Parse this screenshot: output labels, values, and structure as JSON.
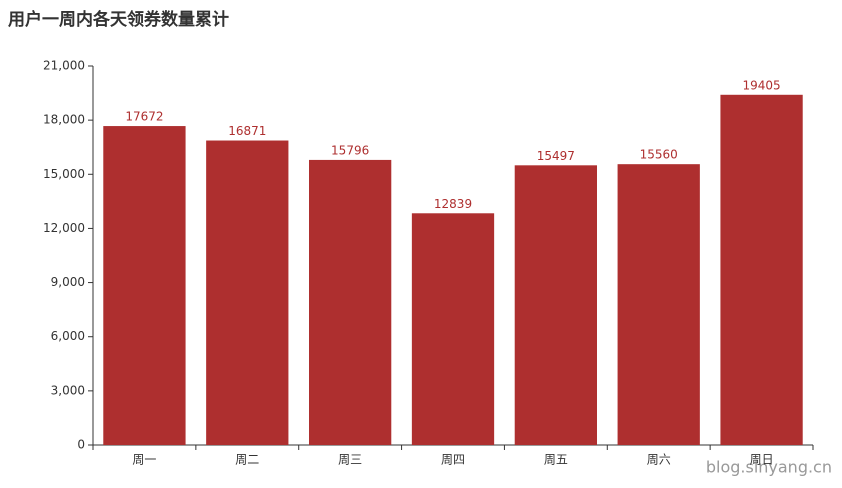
{
  "chart_data": {
    "type": "bar",
    "title": "用户一周内各天领券数量累计",
    "categories": [
      "周一",
      "周二",
      "周三",
      "周四",
      "周五",
      "周六",
      "周日"
    ],
    "values": [
      17672,
      16871,
      15796,
      12839,
      15497,
      15560,
      19405
    ],
    "color": "#ae2f2f",
    "ylim": [
      0,
      21000
    ],
    "yticks": [
      0,
      {
        "value": 3000,
        "label": "3,000"
      },
      {
        "value": 6000,
        "label": "6,000"
      },
      {
        "value": 9000,
        "label": "9,000"
      },
      {
        "value": 12000,
        "label": "12,000"
      },
      {
        "value": 15000,
        "label": "15,000"
      },
      {
        "value": 18000,
        "label": "18,000"
      },
      {
        "value": 21000,
        "label": "21,000"
      }
    ],
    "grid": false,
    "watermark": "blog.sinyang.cn"
  }
}
